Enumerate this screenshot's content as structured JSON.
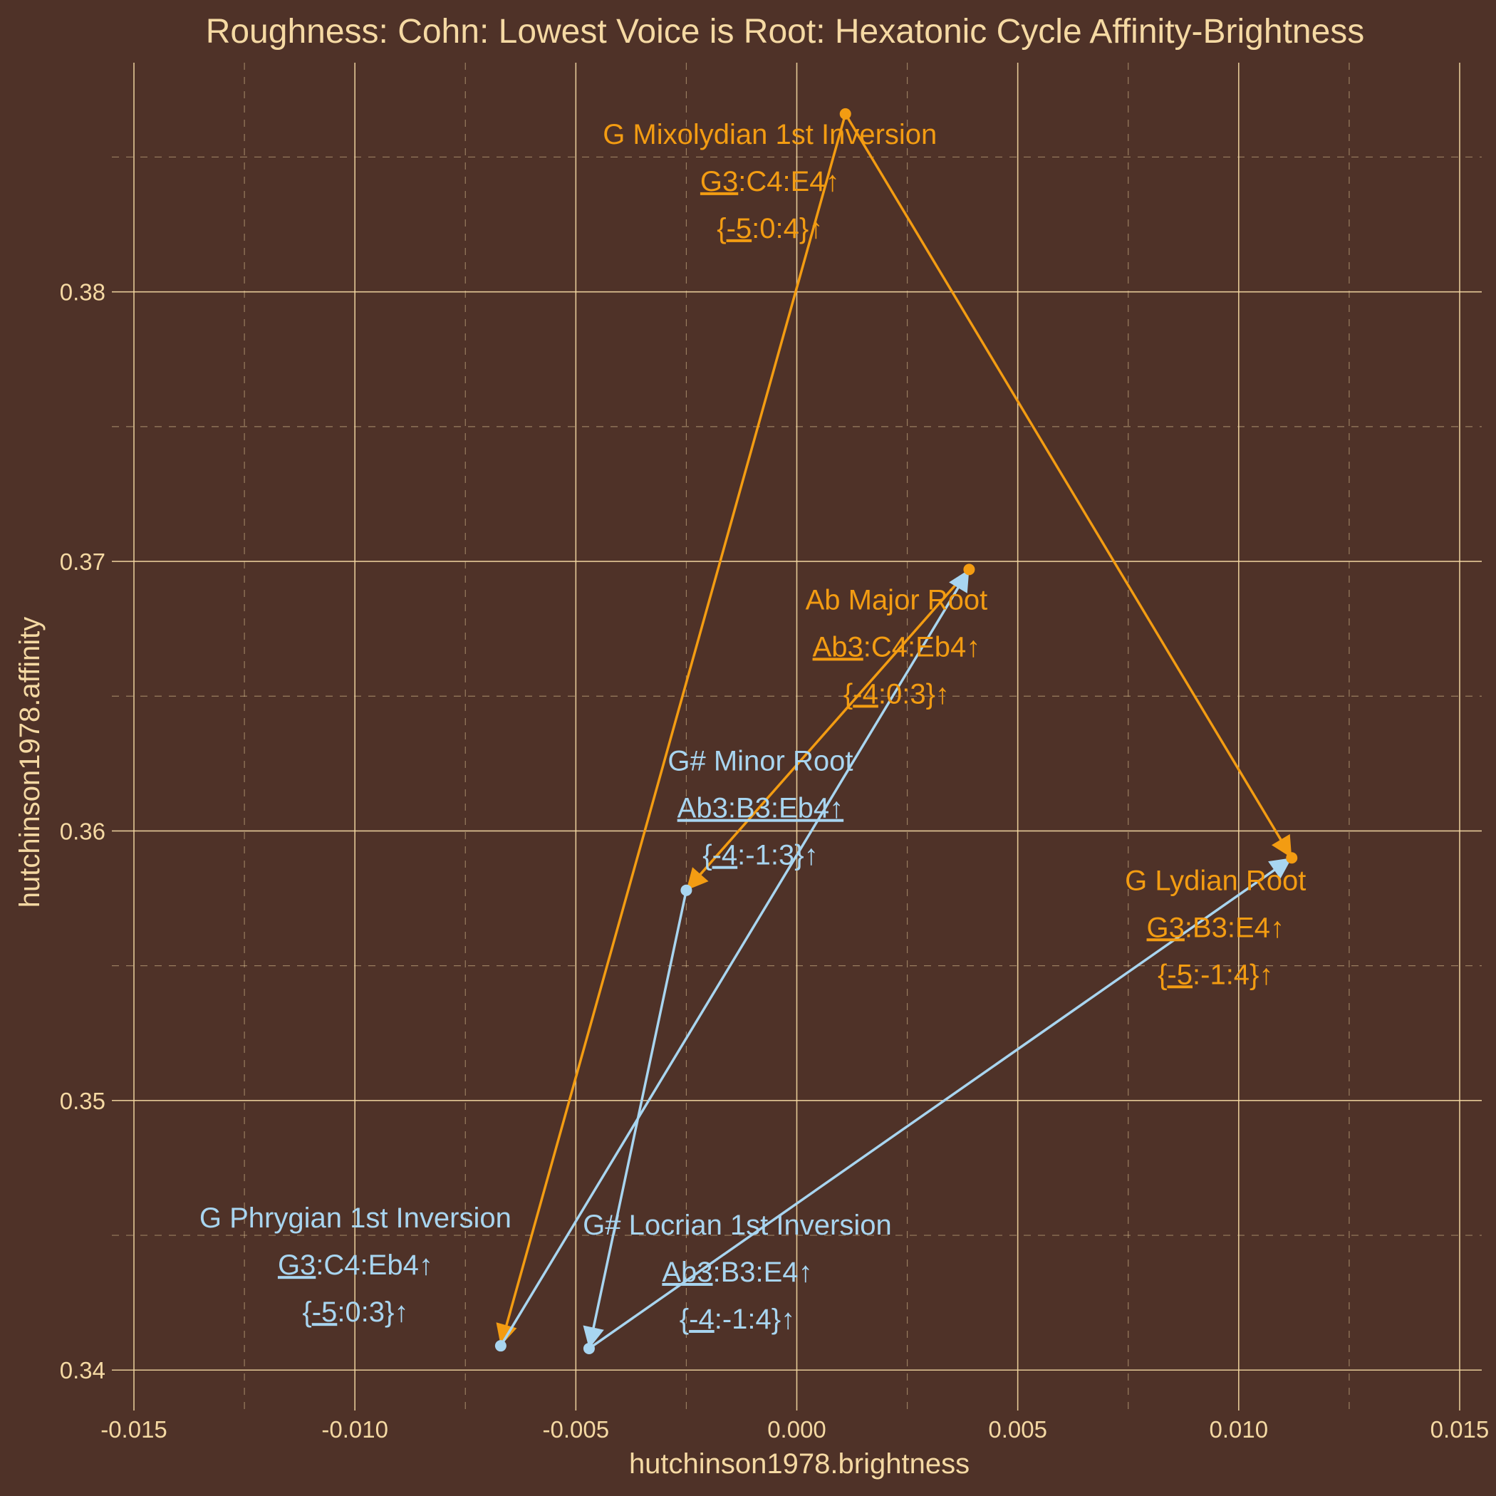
{
  "chart_data": {
    "type": "scatter",
    "title": "Roughness: Cohn: Lowest Voice is Root: Hexatonic Cycle Affinity-Brightness",
    "xlabel": "hutchinson1978.brightness",
    "ylabel": "hutchinson1978.affinity",
    "xlim": [
      -0.0155,
      0.0155
    ],
    "ylim": [
      0.3385,
      0.3885
    ],
    "x_ticks": [
      -0.015,
      -0.01,
      -0.005,
      0.0,
      0.005,
      0.01,
      0.015
    ],
    "x_tick_labels": [
      "-0.015",
      "-0.010",
      "-0.005",
      "0.000",
      "0.005",
      "0.010",
      "0.015"
    ],
    "y_ticks": [
      0.34,
      0.35,
      0.36,
      0.37,
      0.38
    ],
    "y_tick_labels": [
      "0.34",
      "0.35",
      "0.36",
      "0.37",
      "0.38"
    ],
    "grid": true,
    "legend": "none",
    "colors": {
      "background": "#4f3228",
      "grid": "#f5d9a3",
      "text": "#f5d9a3",
      "major": "#f39c12",
      "minor": "#a8d5f0"
    },
    "points": [
      {
        "id": "ab-major",
        "name": "Ab Major Root",
        "notes": "Ab3:C4:Eb4",
        "notes_u": "Ab3",
        "intervals": "{-4:0:3}",
        "intervals_u": "-4",
        "arrow": "↑",
        "x": 0.0039,
        "y": 0.3697,
        "color": "major"
      },
      {
        "id": "g-sharp-minor",
        "name": "G# Minor Root",
        "notes": "Ab3:B3:Eb4",
        "notes_u": "",
        "intervals": "{-4:-1:3}",
        "intervals_u": "-4",
        "arrow": "↑",
        "x": -0.0025,
        "y": 0.3578,
        "color": "minor"
      },
      {
        "id": "g-mixolydian",
        "name": "G Mixolydian 1st Inversion",
        "notes": "G3:C4:E4",
        "notes_u": "G3",
        "intervals": "{-5:0:4}",
        "intervals_u": "-5",
        "arrow": "↑",
        "x": 0.0011,
        "y": 0.3866,
        "color": "major"
      },
      {
        "id": "g-phrygian",
        "name": "G Phrygian 1st Inversion",
        "notes": "G3:C4:Eb4",
        "notes_u": "G3",
        "intervals": "{-5:0:3}",
        "intervals_u": "-5",
        "arrow": "↑",
        "x": -0.0067,
        "y": 0.3409,
        "color": "minor"
      },
      {
        "id": "g-lydian",
        "name": "G Lydian Root",
        "notes": "G3:B3:E4",
        "notes_u": "G3",
        "intervals": "{-5:-1:4}",
        "intervals_u": "-5",
        "arrow": "↑",
        "x": 0.0112,
        "y": 0.359,
        "color": "major"
      },
      {
        "id": "g-sharp-locrian",
        "name": "G# Locrian 1st Inversion",
        "notes": "Ab3:B3:E4",
        "notes_u": "Ab3",
        "intervals": "{-4:-1:4}",
        "intervals_u": "-4",
        "arrow": "↑",
        "x": -0.0047,
        "y": 0.3408,
        "color": "minor"
      }
    ],
    "arrows": [
      {
        "from": "ab-major",
        "to": "g-sharp-minor",
        "color": "major"
      },
      {
        "from": "g-mixolydian",
        "to": "g-phrygian",
        "color": "major"
      },
      {
        "from": "g-mixolydian",
        "to": "g-lydian",
        "color": "major"
      },
      {
        "from": "g-sharp-minor",
        "to": "g-sharp-locrian",
        "color": "minor"
      },
      {
        "from": "g-phrygian",
        "to": "ab-major",
        "color": "minor"
      },
      {
        "from": "g-sharp-locrian",
        "to": "g-lydian",
        "color": "minor"
      }
    ]
  }
}
